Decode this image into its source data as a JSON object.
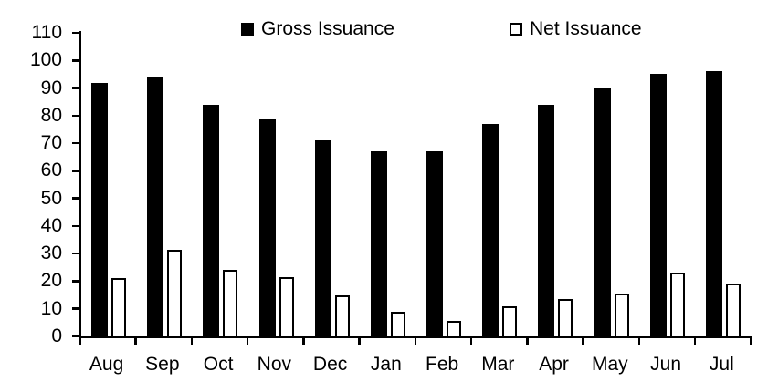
{
  "chart_data": {
    "type": "bar",
    "title": "",
    "categories": [
      "Aug",
      "Sep",
      "Oct",
      "Nov",
      "Dec",
      "Jan",
      "Feb",
      "Mar",
      "Apr",
      "May",
      "Jun",
      "Jul"
    ],
    "series": [
      {
        "name": "Gross Issuance",
        "fill": "#000000",
        "values": [
          92,
          94,
          84,
          79,
          71,
          67,
          67,
          77,
          84,
          90,
          95,
          96
        ]
      },
      {
        "name": "Net Issuance",
        "fill": "#ffffff",
        "border": "#000000",
        "values": [
          21,
          31.5,
          24,
          21.5,
          15,
          9,
          5.5,
          11,
          13.5,
          15.5,
          23,
          19
        ]
      }
    ],
    "xlabel": "",
    "ylabel": "",
    "ylim": [
      0,
      110
    ],
    "yticks": [
      0,
      10,
      20,
      30,
      40,
      50,
      60,
      70,
      80,
      90,
      100,
      110
    ],
    "grid": false,
    "legend_position": "top",
    "colors": {
      "axis": "#000000",
      "background": "#ffffff"
    }
  }
}
